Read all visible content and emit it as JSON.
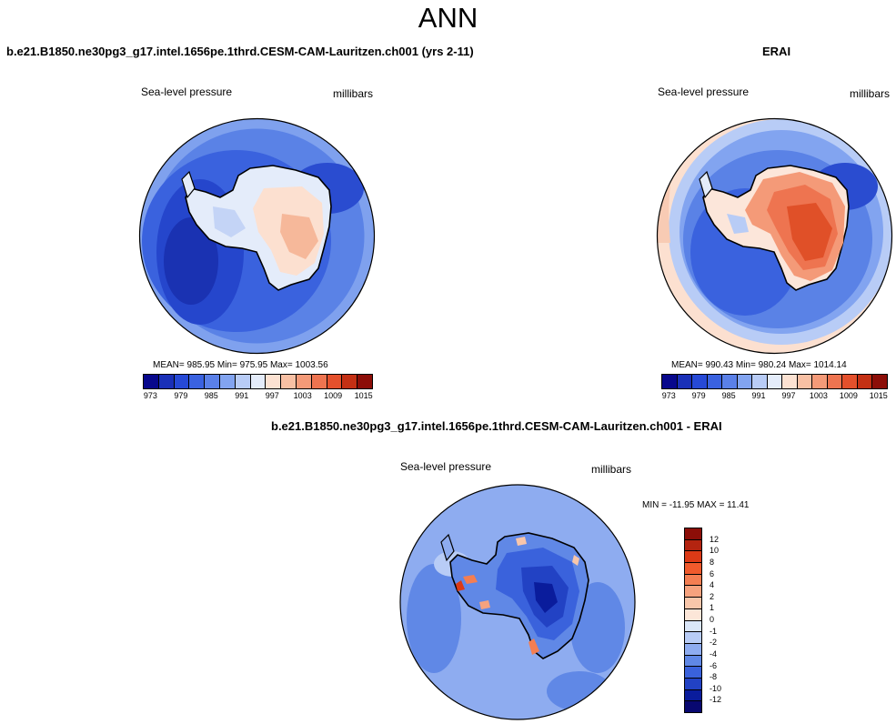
{
  "figure": {
    "title": "ANN"
  },
  "panels": {
    "model": {
      "title": "b.e21.B1850.ne30pg3_g17.intel.1656pe.1thrd.CESM-CAM-Lauritzen.ch001 (yrs 2-11)",
      "variable": "Sea-level pressure",
      "units": "millibars",
      "stats": "MEAN= 985.95   Min= 975.95   Max= 1003.56"
    },
    "obs": {
      "title": "ERAI",
      "variable": "Sea-level pressure",
      "units": "millibars",
      "stats": "MEAN= 990.43   Min= 980.24   Max= 1014.14"
    },
    "diff": {
      "title": "b.e21.B1850.ne30pg3_g17.intel.1656pe.1thrd.CESM-CAM-Lauritzen.ch001 - ERAI",
      "variable": "Sea-level pressure",
      "units": "millibars",
      "stats": "MIN = -11.95 MAX =  11.41"
    }
  },
  "colorbar_abs": {
    "colors": [
      "#08088c",
      "#1a30b8",
      "#2649d6",
      "#3a62e0",
      "#5a80e8",
      "#82a4f0",
      "#b8ccf6",
      "#e4ecfa",
      "#fce2d2",
      "#f8c0a4",
      "#f49a78",
      "#ee7450",
      "#e4502c",
      "#c43014",
      "#8c0e08"
    ],
    "labels": [
      "973",
      "979",
      "985",
      "991",
      "997",
      "1003",
      "1009",
      "1015"
    ]
  },
  "colorbar_diff": {
    "colors": [
      "#8c0e08",
      "#b42410",
      "#dc3a16",
      "#f05a2c",
      "#f47e52",
      "#f6a27e",
      "#f8c6aa",
      "#fce6d8",
      "#dae6f8",
      "#b8ccf6",
      "#8eacf0",
      "#6088e6",
      "#3a62dc",
      "#2242c4",
      "#0a1c9c",
      "#080870"
    ],
    "labels": [
      "12",
      "10",
      "8",
      "6",
      "4",
      "2",
      "1",
      "0",
      "-1",
      "-2",
      "-4",
      "-6",
      "-8",
      "-10",
      "-12"
    ]
  }
}
